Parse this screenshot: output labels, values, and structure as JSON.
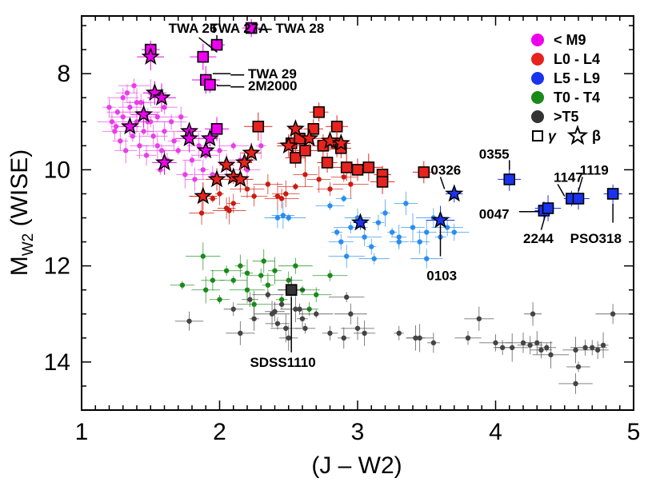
{
  "chart_data": {
    "type": "scatter",
    "title": "",
    "xlabel": "(J – W2)",
    "ylabel_main": "M",
    "ylabel_sub": "W2",
    "ylabel_suffix": " (WISE)",
    "xlim": [
      1,
      5
    ],
    "ylim": [
      15,
      6.8
    ],
    "y_inverted": true,
    "x_ticks": [
      1,
      2,
      3,
      4,
      5
    ],
    "x_tick_labels": [
      "1",
      "2",
      "3",
      "4",
      "5"
    ],
    "y_ticks": [
      8,
      10,
      12,
      14
    ],
    "y_tick_labels": [
      "8",
      "10",
      "12",
      "14"
    ],
    "grid": false,
    "legend_position": "top-right",
    "colors": {
      "lt_m9": "#ee00ee",
      "l0_l4": "#e8231e",
      "l5_l9": "#1a33ee",
      "t0_t4": "#1a8a1a",
      "gt_t5": "#333333",
      "field_m": "#e83ee8",
      "field_l0l4": "#cc1a10",
      "field_l5l9": "#2a8ef0",
      "field_t0t4": "#1a8a1a",
      "field_t5": "#444444"
    },
    "legend": {
      "entries": [
        {
          "label": "< M9",
          "color_key": "lt_m9"
        },
        {
          "label": "L0 - L4",
          "color_key": "l0_l4"
        },
        {
          "label": "L5 - L9",
          "color_key": "l5_l9"
        },
        {
          "label": "T0 - T4",
          "color_key": "t0_t4"
        },
        {
          "label": ">T5",
          "color_key": "gt_t5"
        }
      ],
      "gamma_symbol": "γ",
      "beta_symbol": "β"
    },
    "series": [
      {
        "name": "< M9 field",
        "marker": "dot",
        "color_key": "field_m",
        "points": [
          [
            1.2,
            8.7
          ],
          [
            1.22,
            9.0
          ],
          [
            1.24,
            9.2
          ],
          [
            1.26,
            8.8
          ],
          [
            1.28,
            9.4
          ],
          [
            1.3,
            8.5
          ],
          [
            1.3,
            8.9
          ],
          [
            1.32,
            9.6
          ],
          [
            1.35,
            8.7
          ],
          [
            1.35,
            9.1
          ],
          [
            1.37,
            9.3
          ],
          [
            1.4,
            8.6
          ],
          [
            1.4,
            9.0
          ],
          [
            1.42,
            9.5
          ],
          [
            1.45,
            8.8
          ],
          [
            1.45,
            9.2
          ],
          [
            1.47,
            9.7
          ],
          [
            1.5,
            8.4
          ],
          [
            1.5,
            9.0
          ],
          [
            1.52,
            9.3
          ],
          [
            1.55,
            8.9
          ],
          [
            1.55,
            9.5
          ],
          [
            1.57,
            10.0
          ],
          [
            1.6,
            8.7
          ],
          [
            1.6,
            9.2
          ],
          [
            1.62,
            9.8
          ],
          [
            1.65,
            9.0
          ],
          [
            1.67,
            9.4
          ],
          [
            1.7,
            9.6
          ],
          [
            1.72,
            8.9
          ],
          [
            1.75,
            10.1
          ],
          [
            1.78,
            9.2
          ],
          [
            1.8,
            9.8
          ],
          [
            1.82,
            10.2
          ],
          [
            1.85,
            9.5
          ],
          [
            1.88,
            10.0
          ],
          [
            1.9,
            9.7
          ],
          [
            1.95,
            10.1
          ],
          [
            2.0,
            9.6
          ],
          [
            2.05,
            9.9
          ],
          [
            2.1,
            9.5
          ],
          [
            2.15,
            9.8
          ],
          [
            2.2,
            10.0
          ],
          [
            2.3,
            9.5
          ],
          [
            1.33,
            8.4
          ],
          [
            1.38,
            8.25
          ],
          [
            1.43,
            8.6
          ],
          [
            1.25,
            9.1
          ],
          [
            1.48,
            9.0
          ],
          [
            1.58,
            9.6
          ]
        ]
      },
      {
        "name": "L0 - L4 field",
        "marker": "dot",
        "color_key": "field_l0l4",
        "points": [
          [
            1.87,
            10.9
          ],
          [
            1.95,
            10.6
          ],
          [
            2.05,
            10.8
          ],
          [
            2.07,
            10.85
          ],
          [
            2.1,
            10.7
          ],
          [
            2.2,
            10.4
          ],
          [
            2.25,
            10.55
          ],
          [
            2.35,
            10.3
          ],
          [
            2.42,
            10.55
          ],
          [
            2.48,
            10.5
          ],
          [
            2.55,
            10.35
          ],
          [
            2.62,
            10.1
          ],
          [
            2.72,
            10.2
          ],
          [
            2.8,
            10.4
          ],
          [
            2.9,
            10.15
          ],
          [
            2.95,
            10.3
          ],
          [
            2.45,
            10.6
          ],
          [
            2.0,
            10.5
          ]
        ]
      },
      {
        "name": "L5 - L9 field",
        "marker": "dot",
        "color_key": "field_l5l9",
        "points": [
          [
            2.42,
            11.0
          ],
          [
            2.46,
            10.95
          ],
          [
            2.5,
            11.0
          ],
          [
            2.8,
            10.75
          ],
          [
            2.85,
            11.3
          ],
          [
            2.9,
            10.6
          ],
          [
            2.95,
            11.2
          ],
          [
            3.0,
            11.0
          ],
          [
            3.05,
            11.4
          ],
          [
            3.1,
            11.6
          ],
          [
            3.15,
            11.1
          ],
          [
            3.2,
            10.9
          ],
          [
            3.25,
            11.3
          ],
          [
            3.3,
            11.4
          ],
          [
            3.35,
            10.7
          ],
          [
            3.4,
            11.2
          ],
          [
            3.45,
            11.5
          ],
          [
            3.5,
            11.3
          ],
          [
            3.55,
            11.0
          ],
          [
            3.6,
            11.4
          ],
          [
            3.65,
            11.2
          ],
          [
            3.7,
            11.3
          ],
          [
            2.92,
            11.8
          ],
          [
            3.12,
            11.85
          ],
          [
            3.5,
            11.85
          ],
          [
            2.88,
            11.5
          ],
          [
            3.3,
            11.5
          ]
        ]
      },
      {
        "name": "T0 - T4 field",
        "marker": "dot",
        "color_key": "field_t0t4",
        "points": [
          [
            1.73,
            12.4
          ],
          [
            1.88,
            11.8
          ],
          [
            1.9,
            12.5
          ],
          [
            1.95,
            12.3
          ],
          [
            2.0,
            12.7
          ],
          [
            2.05,
            12.1
          ],
          [
            2.1,
            12.3
          ],
          [
            2.15,
            12.0
          ],
          [
            2.2,
            12.5
          ],
          [
            2.25,
            12.8
          ],
          [
            2.3,
            12.2
          ],
          [
            2.35,
            12.4
          ],
          [
            2.4,
            12.1
          ],
          [
            2.45,
            12.7
          ],
          [
            2.5,
            12.3
          ],
          [
            2.55,
            12.0
          ],
          [
            2.6,
            12.5
          ],
          [
            2.65,
            12.9
          ],
          [
            2.7,
            12.6
          ],
          [
            2.8,
            12.2
          ],
          [
            2.2,
            12.15
          ],
          [
            2.32,
            11.9
          ]
        ]
      },
      {
        "name": ">T5 field",
        "marker": "dot",
        "color_key": "field_t5",
        "points": [
          [
            1.78,
            13.15
          ],
          [
            2.1,
            12.9
          ],
          [
            2.15,
            13.4
          ],
          [
            2.22,
            12.7
          ],
          [
            2.25,
            13.1
          ],
          [
            2.35,
            12.6
          ],
          [
            2.38,
            13.0
          ],
          [
            2.42,
            13.2
          ],
          [
            2.45,
            12.8
          ],
          [
            2.48,
            13.3
          ],
          [
            2.5,
            13.5
          ],
          [
            2.55,
            12.9
          ],
          [
            2.6,
            13.1
          ],
          [
            2.7,
            13.0
          ],
          [
            2.8,
            13.4
          ],
          [
            2.9,
            13.5
          ],
          [
            2.92,
            12.65
          ],
          [
            2.95,
            13.0
          ],
          [
            3.0,
            13.3
          ],
          [
            3.05,
            13.4
          ],
          [
            3.3,
            13.4
          ],
          [
            3.42,
            13.5
          ],
          [
            3.45,
            13.5
          ],
          [
            3.55,
            13.6
          ],
          [
            3.8,
            13.5
          ],
          [
            3.88,
            13.1
          ],
          [
            4.0,
            13.6
          ],
          [
            4.05,
            13.7
          ],
          [
            4.12,
            13.7
          ],
          [
            4.2,
            13.6
          ],
          [
            4.25,
            13.65
          ],
          [
            4.27,
            13.0
          ],
          [
            4.3,
            13.6
          ],
          [
            4.33,
            13.75
          ],
          [
            4.37,
            13.7
          ],
          [
            4.4,
            13.85
          ],
          [
            4.58,
            13.75
          ],
          [
            4.6,
            14.1
          ],
          [
            4.65,
            13.7
          ],
          [
            4.7,
            13.7
          ],
          [
            4.74,
            13.75
          ],
          [
            4.78,
            13.65
          ],
          [
            4.85,
            13.0
          ],
          [
            4.58,
            14.45
          ],
          [
            2.58,
            12.9
          ],
          [
            2.62,
            13.3
          ],
          [
            2.4,
            12.95
          ]
        ]
      },
      {
        "name": "< M9 gamma",
        "marker": "square",
        "color_key": "lt_m9",
        "points": [
          [
            1.5,
            7.5
          ],
          [
            1.88,
            7.65
          ],
          [
            1.98,
            7.4
          ],
          [
            2.23,
            7.05
          ],
          [
            1.9,
            8.13
          ],
          [
            1.93,
            8.23
          ],
          [
            1.98,
            9.15
          ]
        ]
      },
      {
        "name": "< M9 beta",
        "marker": "star",
        "color_key": "lt_m9",
        "points": [
          [
            1.5,
            7.65
          ],
          [
            1.53,
            8.4
          ],
          [
            1.45,
            8.85
          ],
          [
            1.35,
            9.1
          ],
          [
            1.58,
            8.5
          ],
          [
            1.78,
            9.2
          ],
          [
            1.78,
            9.35
          ],
          [
            1.9,
            9.6
          ],
          [
            1.93,
            9.35
          ],
          [
            1.6,
            9.85
          ]
        ]
      },
      {
        "name": "L0 - L4 gamma",
        "marker": "square",
        "color_key": "l0_l4",
        "points": [
          [
            2.28,
            9.1
          ],
          [
            2.52,
            9.45
          ],
          [
            2.55,
            9.75
          ],
          [
            2.58,
            9.35
          ],
          [
            2.62,
            9.6
          ],
          [
            2.68,
            9.15
          ],
          [
            2.72,
            8.8
          ],
          [
            2.75,
            9.5
          ],
          [
            2.85,
            9.1
          ],
          [
            2.85,
            9.45
          ],
          [
            2.88,
            9.55
          ],
          [
            2.92,
            9.95
          ],
          [
            3.0,
            10.0
          ],
          [
            3.08,
            9.95
          ],
          [
            3.18,
            10.1
          ],
          [
            3.18,
            10.25
          ],
          [
            3.48,
            10.05
          ],
          [
            2.78,
            9.85
          ]
        ]
      },
      {
        "name": "L0 - L4 beta",
        "marker": "star",
        "color_key": "l0_l4",
        "points": [
          [
            1.88,
            10.55
          ],
          [
            1.98,
            10.2
          ],
          [
            2.05,
            9.9
          ],
          [
            2.1,
            10.15
          ],
          [
            2.18,
            9.85
          ],
          [
            2.23,
            9.65
          ],
          [
            2.15,
            10.2
          ],
          [
            2.5,
            9.5
          ],
          [
            2.55,
            9.15
          ],
          [
            2.65,
            9.35
          ],
          [
            2.8,
            9.4
          ],
          [
            2.88,
            9.45
          ]
        ]
      },
      {
        "name": "L5 - L9 gamma",
        "marker": "square",
        "color_key": "l5_l9",
        "points": [
          [
            4.1,
            10.2
          ],
          [
            4.35,
            10.85
          ],
          [
            4.38,
            10.8
          ],
          [
            4.55,
            10.6
          ],
          [
            4.6,
            10.6
          ],
          [
            4.85,
            10.5
          ]
        ]
      },
      {
        "name": "L5 - L9 beta",
        "marker": "star",
        "color_key": "l5_l9",
        "points": [
          [
            3.7,
            10.5
          ],
          [
            3.6,
            11.05
          ],
          [
            3.02,
            11.1
          ]
        ]
      },
      {
        "name": ">T5 gamma",
        "marker": "square",
        "color_key": "gt_t5",
        "points": [
          [
            2.52,
            12.5
          ]
        ]
      }
    ],
    "annotations": [
      {
        "text": "TWA 26",
        "x": 1.63,
        "y": 7.05
      },
      {
        "text": "TWA 27A",
        "x": 1.93,
        "y": 7.05
      },
      {
        "text": "— TWA 28",
        "x": 2.28,
        "y": 7.05
      },
      {
        "text": "— TWA 29",
        "x": 2.08,
        "y": 8.0
      },
      {
        "text": "— 2M2000",
        "x": 2.08,
        "y": 8.25
      },
      {
        "text": "0326",
        "x": 3.53,
        "y": 10.0
      },
      {
        "text": "0355",
        "x": 3.88,
        "y": 9.67
      },
      {
        "text": "1147",
        "x": 4.42,
        "y": 10.15
      },
      {
        "text": "1119",
        "x": 4.61,
        "y": 10.0
      },
      {
        "text": "0047",
        "x": 3.88,
        "y": 10.92
      },
      {
        "text": "2244",
        "x": 4.2,
        "y": 11.42
      },
      {
        "text": "PSO318",
        "x": 4.54,
        "y": 11.42
      },
      {
        "text": "0103",
        "x": 3.5,
        "y": 12.2
      },
      {
        "text": "SDSS1110",
        "x": 2.22,
        "y": 14.0
      }
    ],
    "annotation_lines": [
      [
        1.85,
        7.25,
        1.98,
        7.55
      ],
      [
        1.98,
        7.2,
        1.98,
        7.32
      ],
      [
        2.08,
        8.0,
        1.95,
        8.0
      ],
      [
        2.08,
        8.25,
        1.98,
        8.25
      ],
      [
        3.6,
        10.15,
        3.63,
        10.4
      ],
      [
        4.1,
        9.8,
        4.1,
        10.0
      ],
      [
        4.45,
        10.3,
        4.5,
        10.55
      ],
      [
        4.63,
        10.15,
        4.6,
        10.45
      ],
      [
        4.17,
        10.87,
        4.32,
        10.87
      ],
      [
        4.33,
        11.25,
        4.36,
        10.95
      ],
      [
        4.85,
        10.7,
        4.85,
        11.1
      ],
      [
        3.6,
        11.15,
        3.6,
        11.8
      ],
      [
        2.52,
        12.65,
        2.52,
        13.8
      ]
    ]
  }
}
